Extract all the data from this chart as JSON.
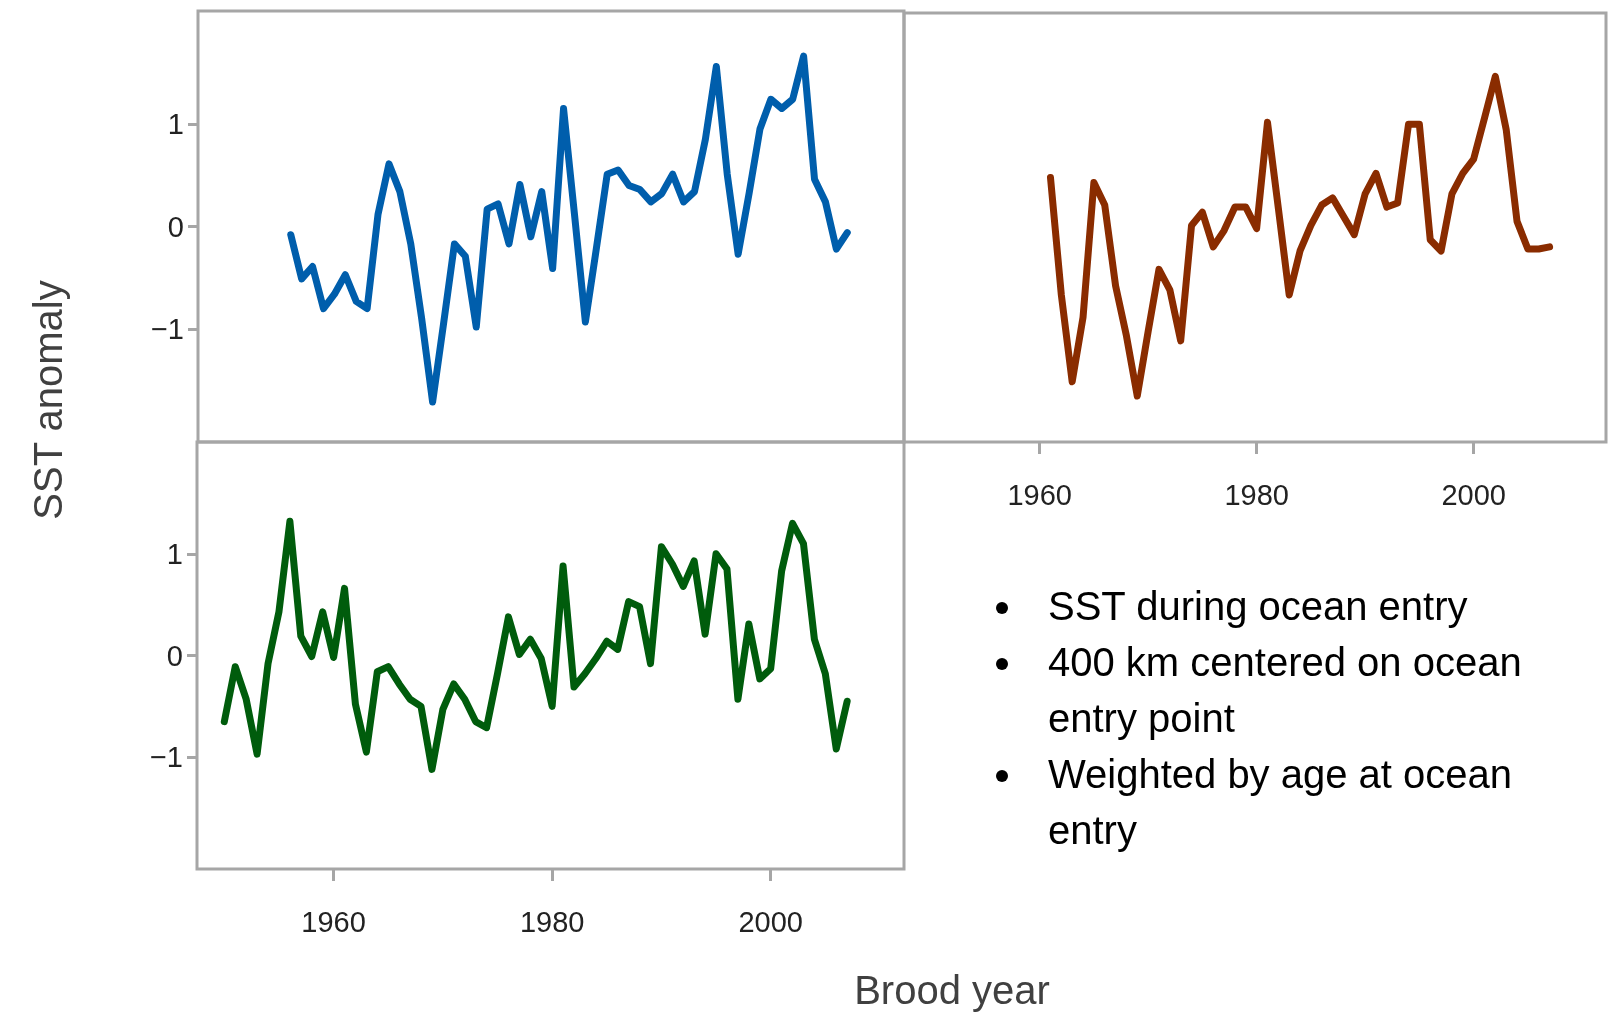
{
  "chart_data": [
    {
      "type": "line",
      "ylabel": "SST anomaly",
      "xlim": [
        1947.5,
        2012.2
      ],
      "ylim": [
        -2.1,
        2.1
      ],
      "yticks": [
        -1,
        0,
        1
      ],
      "tick_labels": "y",
      "grid": false,
      "marker": "none",
      "x": [
        1956,
        1957,
        1958,
        1959,
        1960,
        1961,
        1962,
        1963,
        1964,
        1965,
        1966,
        1967,
        1968,
        1969,
        1970,
        1971,
        1972,
        1973,
        1974,
        1975,
        1976,
        1977,
        1978,
        1979,
        1980,
        1981,
        1982,
        1983,
        1984,
        1985,
        1986,
        1987,
        1988,
        1989,
        1990,
        1991,
        1992,
        1993,
        1994,
        1995,
        1996,
        1997,
        1998,
        1999,
        2000,
        2001,
        2002,
        2003,
        2004,
        2005,
        2006,
        2007
      ],
      "series": [
        {
          "color": "#005eac",
          "values": [
            -0.08,
            -0.51,
            -0.39,
            -0.8,
            -0.66,
            -0.47,
            -0.73,
            -0.8,
            0.12,
            0.61,
            0.34,
            -0.17,
            -0.9,
            -1.71,
            -0.95,
            -0.17,
            -0.29,
            -0.98,
            0.17,
            0.22,
            -0.17,
            0.41,
            -0.1,
            0.34,
            -0.41,
            1.15,
            0.12,
            -0.93,
            -0.22,
            0.51,
            0.55,
            0.4,
            0.36,
            0.24,
            0.32,
            0.51,
            0.24,
            0.34,
            0.85,
            1.56,
            0.51,
            -0.27,
            0.32,
            0.95,
            1.24,
            1.15,
            1.24,
            1.66,
            0.46,
            0.24,
            -0.22,
            -0.06
          ]
        }
      ]
    },
    {
      "type": "line",
      "xlim": [
        1947.5,
        2012.2
      ],
      "xticks": [
        1960,
        1980,
        2000
      ],
      "ylim": [
        -2.1,
        2.1
      ],
      "tick_labels": "x",
      "grid": false,
      "marker": "none",
      "annotations": [
        "SST during ocean entry",
        "400 km centered on ocean entry point",
        "Weighted by age at ocean entry"
      ],
      "x": [
        1961,
        1962,
        1963,
        1964,
        1965,
        1966,
        1967,
        1968,
        1969,
        1970,
        1971,
        1972,
        1973,
        1974,
        1975,
        1976,
        1977,
        1978,
        1979,
        1980,
        1981,
        1982,
        1983,
        1984,
        1985,
        1986,
        1987,
        1988,
        1989,
        1990,
        1991,
        1992,
        1993,
        1994,
        1995,
        1996,
        1997,
        1998,
        1999,
        2000,
        2001,
        2002,
        2003,
        2004,
        2005,
        2006,
        2007
      ],
      "series": [
        {
          "color": "#8a2c00",
          "values": [
            0.49,
            -0.66,
            -1.51,
            -0.88,
            0.44,
            0.22,
            -0.57,
            -1.06,
            -1.65,
            -1.02,
            -0.41,
            -0.61,
            -1.11,
            0.02,
            0.15,
            -0.19,
            -0.03,
            0.2,
            0.2,
            -0.01,
            1.03,
            0.19,
            -0.66,
            -0.23,
            0.02,
            0.22,
            0.29,
            0.11,
            -0.07,
            0.33,
            0.53,
            0.2,
            0.24,
            1.01,
            1.01,
            -0.12,
            -0.23,
            0.33,
            0.53,
            0.67,
            1.07,
            1.48,
            0.96,
            0.06,
            -0.21,
            -0.21,
            -0.19
          ]
        }
      ]
    },
    {
      "type": "line",
      "xlabel": "Brood year",
      "xlim": [
        1947.5,
        2012.2
      ],
      "xticks": [
        1960,
        1980,
        2000
      ],
      "ylim": [
        -2.1,
        2.1
      ],
      "yticks": [
        -1,
        0,
        1
      ],
      "grid": false,
      "marker": "none",
      "x": [
        1950,
        1951,
        1952,
        1953,
        1954,
        1955,
        1956,
        1957,
        1958,
        1959,
        1960,
        1961,
        1962,
        1963,
        1964,
        1965,
        1966,
        1967,
        1968,
        1969,
        1970,
        1971,
        1972,
        1973,
        1974,
        1975,
        1976,
        1977,
        1978,
        1979,
        1980,
        1981,
        1982,
        1983,
        1984,
        1985,
        1986,
        1987,
        1988,
        1989,
        1990,
        1991,
        1992,
        1993,
        1994,
        1995,
        1996,
        1997,
        1998,
        1999,
        2000,
        2001,
        2002,
        2003,
        2004,
        2005,
        2006,
        2007
      ],
      "series": [
        {
          "color": "#005c0c",
          "values": [
            -0.65,
            -0.11,
            -0.43,
            -0.97,
            -0.08,
            0.43,
            1.32,
            0.19,
            -0.01,
            0.43,
            -0.02,
            0.66,
            -0.48,
            -0.95,
            -0.16,
            -0.11,
            -0.28,
            -0.43,
            -0.5,
            -1.12,
            -0.53,
            -0.28,
            -0.43,
            -0.65,
            -0.71,
            -0.18,
            0.38,
            0.01,
            0.16,
            -0.03,
            -0.5,
            0.88,
            -0.31,
            -0.18,
            -0.03,
            0.14,
            0.06,
            0.53,
            0.48,
            -0.08,
            1.07,
            0.9,
            0.68,
            0.93,
            0.21,
            1.0,
            0.85,
            -0.43,
            0.31,
            -0.23,
            -0.13,
            0.83,
            1.3,
            1.1,
            0.16,
            -0.18,
            -0.92,
            -0.45
          ]
        }
      ]
    }
  ]
}
